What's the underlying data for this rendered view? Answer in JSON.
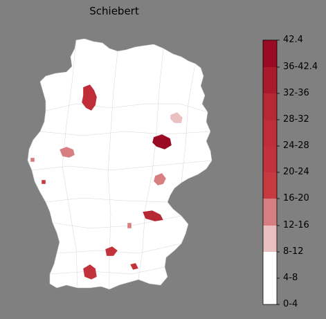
{
  "title": "Schiebert",
  "colors": {
    "background": "#808080",
    "land": "#ffffff",
    "borders": "#cfcfcf"
  },
  "legend": {
    "labels": [
      "42.4",
      "36-42.4",
      "32-36",
      "28-32",
      "24-28",
      "20-24",
      "16-20",
      "12-16",
      "8-12",
      "4-8",
      "0-4"
    ],
    "bands": [
      {
        "label": "36-42.4",
        "color": "#9b0a25"
      },
      {
        "label": "32-36",
        "color": "#a91a2d"
      },
      {
        "label": "28-32",
        "color": "#b72835"
      },
      {
        "label": "24-28",
        "color": "#bf2d39"
      },
      {
        "label": "20-24",
        "color": "#c2323c"
      },
      {
        "label": "16-20",
        "color": "#c73a40"
      },
      {
        "label": "12-16",
        "color": "#d77f80"
      },
      {
        "label": "8-12",
        "color": "#ebc0c0"
      },
      {
        "label": "4-8",
        "color": "#ffffff"
      },
      {
        "label": "0-4",
        "color": "#ffffff"
      }
    ]
  },
  "highlighted_regions": [
    {
      "name": "region-north-lower-saxony",
      "color": "#bf2d39"
    },
    {
      "name": "region-north-west-1",
      "color": "#d77f80"
    },
    {
      "name": "region-west-small",
      "color": "#d77f80"
    },
    {
      "name": "region-west-small-2",
      "color": "#c73a40"
    },
    {
      "name": "region-east-brandenburg",
      "color": "#ebc0c0"
    },
    {
      "name": "region-saxony-anhalt",
      "color": "#9b0a25"
    },
    {
      "name": "region-saxony",
      "color": "#d77f80"
    },
    {
      "name": "region-north-bavaria",
      "color": "#b72835"
    },
    {
      "name": "region-franconia-small",
      "color": "#d77f80"
    },
    {
      "name": "region-south-1",
      "color": "#c2323c"
    },
    {
      "name": "region-south-2",
      "color": "#c2323c"
    },
    {
      "name": "region-south-west",
      "color": "#c2323c"
    }
  ]
}
